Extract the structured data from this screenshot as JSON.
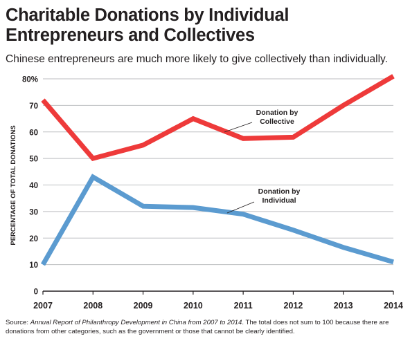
{
  "header": {
    "title_line1": "Charitable Donations by Individual",
    "title_line2": "Entrepreneurs and Collectives",
    "subtitle": "Chinese entrepreneurs are much more likely to give collectively than individually."
  },
  "footer": {
    "source_prefix": "Source: ",
    "source_title": "Annual Report of Philanthropy Development in China from 2007 to 2014",
    "source_rest": ". The total does not sum to 100 because there are donations from other categories, such as the government or those that cannot be clearly identified."
  },
  "chart_data": {
    "type": "line",
    "title": "Charitable Donations by Individual Entrepreneurs and Collectives",
    "x": [
      "2007",
      "2008",
      "2009",
      "2010",
      "2011",
      "2012",
      "2013",
      "2014"
    ],
    "ylabel": "PERCENTAGE OF TOTAL DONATIONS",
    "ylim": [
      0,
      80
    ],
    "yticks": [
      "0",
      "10",
      "20",
      "30",
      "40",
      "50",
      "60",
      "70",
      "80%"
    ],
    "grid": true,
    "series": [
      {
        "name": "Donation by Collective",
        "label_lines": [
          "Donation by",
          "Collective"
        ],
        "color": "#ee3a3a",
        "values": [
          72,
          50,
          55,
          65,
          57.5,
          58,
          70,
          81
        ]
      },
      {
        "name": "Donation by Individual",
        "label_lines": [
          "Donation by",
          "Individual"
        ],
        "color": "#5b9bd0",
        "values": [
          10,
          43,
          32,
          31.5,
          29,
          23,
          16.5,
          11
        ]
      }
    ]
  }
}
